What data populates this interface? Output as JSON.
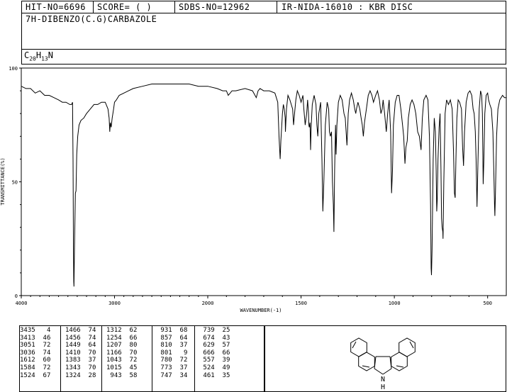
{
  "header": {
    "hit": "HIT-NO=6696",
    "score": "SCORE=  (  )",
    "sdbs": "SDBS-NO=12962",
    "ir": "IR-NIDA-16010 : KBR DISC"
  },
  "compound_name": "7H-DIBENZO(C.G)CARBAZOLE",
  "formula": {
    "c": "C",
    "c_n": "20",
    "h": "H",
    "h_n": "13",
    "n": "N"
  },
  "chart_data": {
    "type": "line",
    "xlabel": "WAVENUMBER(-1)",
    "ylabel": "TRANSMITTANCE(%)",
    "xlim": [
      4000,
      400
    ],
    "ylim": [
      0,
      100
    ],
    "x_ticks": [
      4000,
      3000,
      2000,
      1500,
      1000,
      500
    ],
    "x_tick_labels": [
      "4000",
      "3000",
      "2000",
      "1500",
      "1000",
      "500"
    ],
    "y_ticks": [
      0,
      50,
      100
    ],
    "y_tick_labels": [
      "0",
      "50",
      "100"
    ],
    "grid": false,
    "series": [
      {
        "points": [
          [
            4000,
            92
          ],
          [
            3950,
            91
          ],
          [
            3900,
            91
          ],
          [
            3850,
            89
          ],
          [
            3800,
            90
          ],
          [
            3750,
            88
          ],
          [
            3700,
            88
          ],
          [
            3650,
            87
          ],
          [
            3600,
            86
          ],
          [
            3560,
            85
          ],
          [
            3520,
            85
          ],
          [
            3480,
            84
          ],
          [
            3460,
            84
          ],
          [
            3450,
            85
          ],
          [
            3445,
            60
          ],
          [
            3440,
            20
          ],
          [
            3437,
            6
          ],
          [
            3435,
            4
          ],
          [
            3430,
            20
          ],
          [
            3420,
            45
          ],
          [
            3413,
            46
          ],
          [
            3405,
            62
          ],
          [
            3395,
            70
          ],
          [
            3380,
            75
          ],
          [
            3360,
            77
          ],
          [
            3330,
            78
          ],
          [
            3300,
            80
          ],
          [
            3260,
            82
          ],
          [
            3220,
            84
          ],
          [
            3180,
            84
          ],
          [
            3140,
            85
          ],
          [
            3100,
            85
          ],
          [
            3070,
            82
          ],
          [
            3058,
            78
          ],
          [
            3051,
            72
          ],
          [
            3045,
            76
          ],
          [
            3036,
            74
          ],
          [
            3025,
            78
          ],
          [
            3010,
            82
          ],
          [
            3000,
            85
          ],
          [
            2980,
            86
          ],
          [
            2950,
            88
          ],
          [
            2900,
            89
          ],
          [
            2850,
            90
          ],
          [
            2800,
            91
          ],
          [
            2700,
            92
          ],
          [
            2600,
            93
          ],
          [
            2500,
            93
          ],
          [
            2400,
            93
          ],
          [
            2300,
            93
          ],
          [
            2200,
            93
          ],
          [
            2100,
            92
          ],
          [
            2000,
            92
          ],
          [
            1950,
            91
          ],
          [
            1920,
            90
          ],
          [
            1900,
            90
          ],
          [
            1890,
            88
          ],
          [
            1880,
            89
          ],
          [
            1870,
            90
          ],
          [
            1850,
            90
          ],
          [
            1800,
            91
          ],
          [
            1760,
            90
          ],
          [
            1740,
            87
          ],
          [
            1730,
            90
          ],
          [
            1720,
            91
          ],
          [
            1700,
            90
          ],
          [
            1670,
            90
          ],
          [
            1640,
            89
          ],
          [
            1625,
            85
          ],
          [
            1618,
            70
          ],
          [
            1612,
            60
          ],
          [
            1608,
            68
          ],
          [
            1600,
            80
          ],
          [
            1595,
            84
          ],
          [
            1590,
            82
          ],
          [
            1585,
            78
          ],
          [
            1584,
            72
          ],
          [
            1578,
            82
          ],
          [
            1570,
            88
          ],
          [
            1560,
            86
          ],
          [
            1545,
            82
          ],
          [
            1540,
            75
          ],
          [
            1535,
            80
          ],
          [
            1528,
            86
          ],
          [
            1520,
            90
          ],
          [
            1510,
            88
          ],
          [
            1500,
            85
          ],
          [
            1490,
            88
          ],
          [
            1485,
            82
          ],
          [
            1478,
            75
          ],
          [
            1470,
            80
          ],
          [
            1465,
            86
          ],
          [
            1460,
            80
          ],
          [
            1458,
            75
          ],
          [
            1456,
            74
          ],
          [
            1452,
            76
          ],
          [
            1449,
            64
          ],
          [
            1446,
            74
          ],
          [
            1440,
            84
          ],
          [
            1430,
            88
          ],
          [
            1420,
            84
          ],
          [
            1415,
            75
          ],
          [
            1410,
            70
          ],
          [
            1405,
            80
          ],
          [
            1395,
            85
          ],
          [
            1388,
            60
          ],
          [
            1383,
            37
          ],
          [
            1378,
            50
          ],
          [
            1370,
            75
          ],
          [
            1360,
            85
          ],
          [
            1352,
            82
          ],
          [
            1348,
            72
          ],
          [
            1343,
            70
          ],
          [
            1337,
            72
          ],
          [
            1332,
            50
          ],
          [
            1327,
            40
          ],
          [
            1324,
            28
          ],
          [
            1320,
            55
          ],
          [
            1315,
            75
          ],
          [
            1312,
            62
          ],
          [
            1308,
            75
          ],
          [
            1300,
            85
          ],
          [
            1290,
            88
          ],
          [
            1280,
            86
          ],
          [
            1270,
            80
          ],
          [
            1263,
            78
          ],
          [
            1254,
            66
          ],
          [
            1247,
            80
          ],
          [
            1240,
            86
          ],
          [
            1230,
            89
          ],
          [
            1220,
            86
          ],
          [
            1212,
            82
          ],
          [
            1207,
            80
          ],
          [
            1203,
            82
          ],
          [
            1195,
            85
          ],
          [
            1185,
            82
          ],
          [
            1178,
            78
          ],
          [
            1172,
            75
          ],
          [
            1166,
            70
          ],
          [
            1160,
            76
          ],
          [
            1150,
            82
          ],
          [
            1140,
            88
          ],
          [
            1130,
            90
          ],
          [
            1120,
            88
          ],
          [
            1112,
            85
          ],
          [
            1100,
            88
          ],
          [
            1090,
            90
          ],
          [
            1080,
            86
          ],
          [
            1072,
            80
          ],
          [
            1065,
            82
          ],
          [
            1060,
            86
          ],
          [
            1052,
            80
          ],
          [
            1043,
            72
          ],
          [
            1036,
            80
          ],
          [
            1028,
            86
          ],
          [
            1020,
            72
          ],
          [
            1015,
            45
          ],
          [
            1010,
            55
          ],
          [
            1005,
            75
          ],
          [
            995,
            85
          ],
          [
            985,
            88
          ],
          [
            975,
            88
          ],
          [
            965,
            82
          ],
          [
            956,
            75
          ],
          [
            950,
            70
          ],
          [
            943,
            58
          ],
          [
            938,
            65
          ],
          [
            931,
            68
          ],
          [
            925,
            78
          ],
          [
            915,
            84
          ],
          [
            905,
            86
          ],
          [
            895,
            84
          ],
          [
            885,
            80
          ],
          [
            875,
            72
          ],
          [
            866,
            70
          ],
          [
            857,
            64
          ],
          [
            850,
            78
          ],
          [
            842,
            86
          ],
          [
            830,
            88
          ],
          [
            820,
            86
          ],
          [
            812,
            70
          ],
          [
            806,
            40
          ],
          [
            803,
            12
          ],
          [
            801,
            9
          ],
          [
            798,
            20
          ],
          [
            792,
            60
          ],
          [
            786,
            78
          ],
          [
            780,
            72
          ],
          [
            776,
            55
          ],
          [
            773,
            37
          ],
          [
            770,
            42
          ],
          [
            766,
            60
          ],
          [
            760,
            74
          ],
          [
            755,
            80
          ],
          [
            750,
            55
          ],
          [
            747,
            34
          ],
          [
            744,
            30
          ],
          [
            740,
            28
          ],
          [
            739,
            25
          ],
          [
            735,
            50
          ],
          [
            728,
            80
          ],
          [
            720,
            86
          ],
          [
            710,
            84
          ],
          [
            700,
            86
          ],
          [
            690,
            82
          ],
          [
            683,
            64
          ],
          [
            678,
            45
          ],
          [
            674,
            43
          ],
          [
            670,
            60
          ],
          [
            665,
            78
          ],
          [
            658,
            86
          ],
          [
            650,
            85
          ],
          [
            640,
            82
          ],
          [
            634,
            65
          ],
          [
            629,
            57
          ],
          [
            624,
            72
          ],
          [
            615,
            85
          ],
          [
            605,
            89
          ],
          [
            595,
            90
          ],
          [
            585,
            88
          ],
          [
            578,
            82
          ],
          [
            572,
            80
          ],
          [
            566,
            72
          ],
          [
            562,
            60
          ],
          [
            557,
            39
          ],
          [
            552,
            58
          ],
          [
            545,
            82
          ],
          [
            538,
            90
          ],
          [
            532,
            88
          ],
          [
            528,
            80
          ],
          [
            524,
            49
          ],
          [
            520,
            60
          ],
          [
            515,
            80
          ],
          [
            508,
            88
          ],
          [
            500,
            89
          ],
          [
            495,
            86
          ],
          [
            488,
            84
          ],
          [
            480,
            82
          ],
          [
            472,
            72
          ],
          [
            467,
            55
          ],
          [
            463,
            40
          ],
          [
            461,
            35
          ],
          [
            458,
            45
          ],
          [
            452,
            70
          ],
          [
            445,
            82
          ],
          [
            435,
            86
          ],
          [
            420,
            88
          ],
          [
            410,
            87
          ],
          [
            400,
            87
          ]
        ]
      }
    ]
  },
  "peak_table": {
    "columns": [
      [
        [
          "3435",
          "4"
        ],
        [
          "3413",
          "46"
        ],
        [
          "3051",
          "72"
        ],
        [
          "3036",
          "74"
        ],
        [
          "1612",
          "60"
        ],
        [
          "1584",
          "72"
        ],
        [
          "1524",
          "67"
        ]
      ],
      [
        [
          "1466",
          "74"
        ],
        [
          "1456",
          "74"
        ],
        [
          "1449",
          "64"
        ],
        [
          "1410",
          "70"
        ],
        [
          "1383",
          "37"
        ],
        [
          "1343",
          "70"
        ],
        [
          "1324",
          "28"
        ]
      ],
      [
        [
          "1312",
          "62"
        ],
        [
          "1254",
          "66"
        ],
        [
          "1207",
          "80"
        ],
        [
          "1166",
          "70"
        ],
        [
          "1043",
          "72"
        ],
        [
          "1015",
          "45"
        ],
        [
          "943",
          "58"
        ]
      ],
      [
        [
          "931",
          "68"
        ],
        [
          "857",
          "64"
        ],
        [
          "810",
          "37"
        ],
        [
          "801",
          "9"
        ],
        [
          "780",
          "72"
        ],
        [
          "773",
          "37"
        ],
        [
          "747",
          "34"
        ]
      ],
      [
        [
          "739",
          "25"
        ],
        [
          "674",
          "43"
        ],
        [
          "629",
          "57"
        ],
        [
          "666",
          "66"
        ],
        [
          "557",
          "39"
        ],
        [
          "524",
          "49"
        ],
        [
          "461",
          "35"
        ]
      ]
    ]
  },
  "structure": {
    "atom_label": "N",
    "h_label": "H"
  }
}
